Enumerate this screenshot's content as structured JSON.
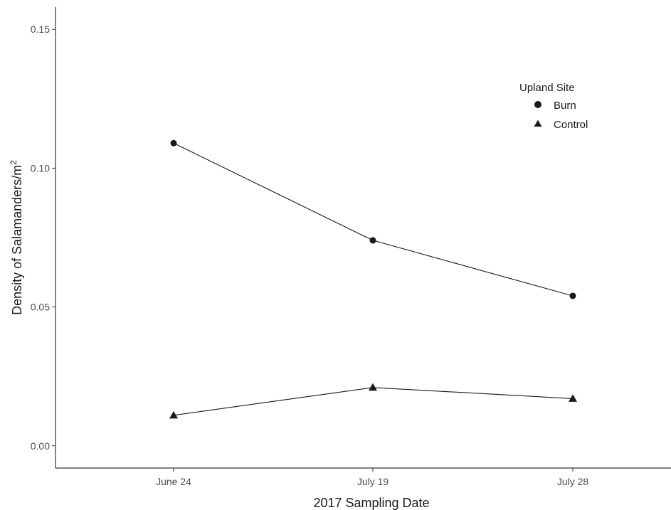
{
  "chart_data": {
    "type": "line",
    "title": "",
    "xlabel": "2017 Sampling Date",
    "ylabel": "Density of Salamanders/m",
    "ylabel_superscript": "2",
    "categories": [
      "June 24",
      "July 19",
      "July 28"
    ],
    "ylim": [
      -0.008,
      0.158
    ],
    "yticks": [
      0.0,
      0.05,
      0.1,
      0.15
    ],
    "ytick_labels": [
      "0.00",
      "0.05",
      "0.10",
      "0.15"
    ],
    "grid": false,
    "legend": {
      "title": "Upland Site",
      "placement": "top-right",
      "entries": [
        "Burn",
        "Control"
      ]
    },
    "series": [
      {
        "name": "Burn",
        "marker": "circle",
        "values": [
          0.109,
          0.074,
          0.054
        ]
      },
      {
        "name": "Control",
        "marker": "triangle",
        "values": [
          0.011,
          0.021,
          0.017
        ]
      }
    ],
    "colors": {
      "line": "#1a1a1a",
      "marker": "#1a1a1a",
      "axis": "#333333",
      "tick_text": "#4d4d4d"
    }
  }
}
